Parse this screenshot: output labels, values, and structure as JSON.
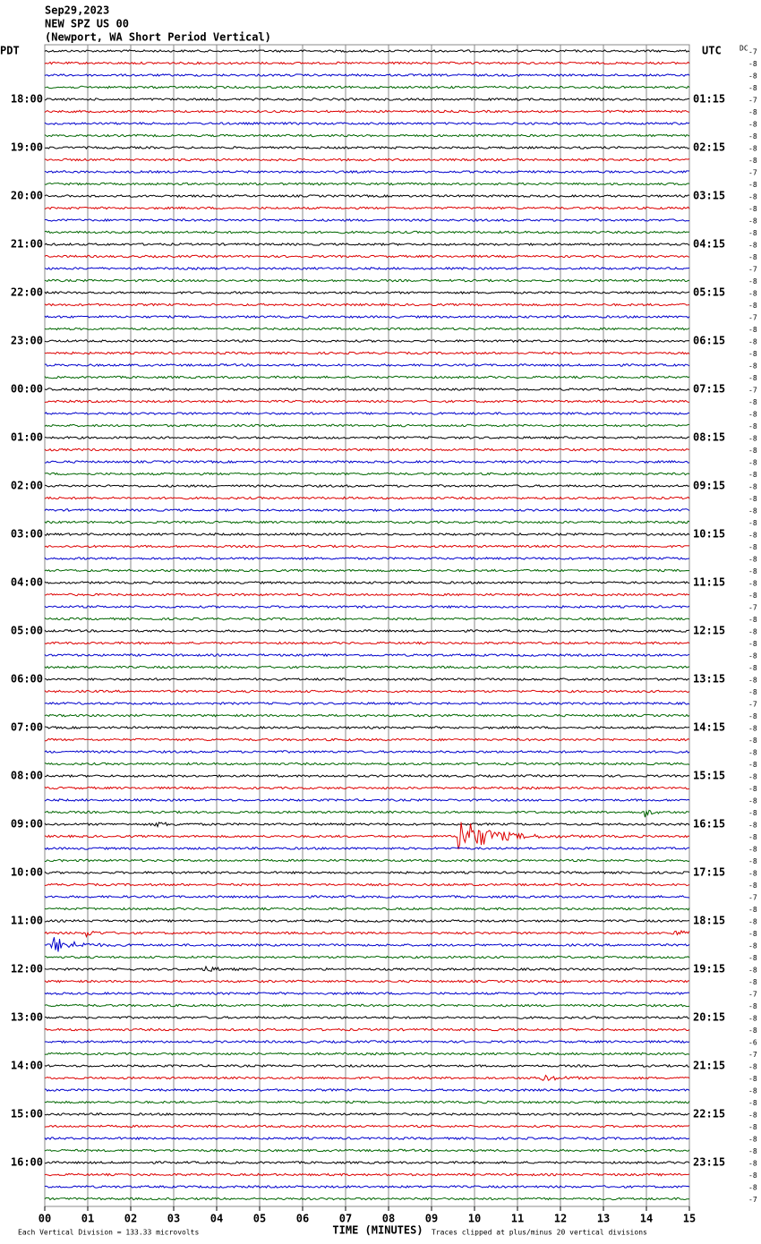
{
  "header": {
    "lines": [
      "Sep29,2023",
      "NEW SPZ US 00",
      "(Newport, WA Short Period Vertical)"
    ]
  },
  "left_zone": "PDT",
  "right_zone": "UTC",
  "dc_label": "DC",
  "left_times": [
    "18:00",
    "19:00",
    "20:00",
    "21:00",
    "22:00",
    "23:00",
    "00:00",
    "01:00",
    "02:00",
    "03:00",
    "04:00",
    "05:00",
    "06:00",
    "07:00",
    "08:00",
    "09:00",
    "10:00",
    "11:00",
    "12:00",
    "13:00",
    "14:00",
    "15:00",
    "16:00"
  ],
  "right_times": [
    "01:15",
    "02:15",
    "03:15",
    "04:15",
    "05:15",
    "06:15",
    "07:15",
    "08:15",
    "09:15",
    "10:15",
    "11:15",
    "12:15",
    "13:15",
    "14:15",
    "15:15",
    "16:15",
    "17:15",
    "18:15",
    "19:15",
    "20:15",
    "21:15",
    "22:15",
    "23:15"
  ],
  "dc_offsets": [
    -7,
    -8,
    -8,
    -8,
    -7,
    -8,
    -8,
    -8,
    -8,
    -8,
    -7,
    -8,
    -8,
    -8,
    -8,
    -8,
    -8,
    -8,
    -7,
    -8,
    -8,
    -8,
    -7,
    -8,
    -8,
    -8,
    -8,
    -8,
    -7,
    -8,
    -8,
    -8,
    -8,
    -8,
    -8,
    -8,
    -8,
    -8,
    -8,
    -8,
    -8,
    -8,
    -8,
    -8,
    -8,
    -8,
    -7,
    -8,
    -8,
    -8,
    -8,
    -8,
    -8,
    -8,
    -7,
    -8,
    -8,
    -8,
    -8,
    -8,
    -8,
    -8,
    -8,
    -8,
    -8,
    -8,
    -8,
    -8,
    -8,
    -8,
    -7,
    -8,
    -8,
    -8,
    -8,
    -8,
    -8,
    -8,
    -7,
    -8,
    -8,
    -8,
    -6,
    -7,
    -8,
    -8,
    -8,
    -8,
    -8,
    -8,
    -8,
    -8,
    -8,
    -8,
    -8,
    -7
  ],
  "x_ticks": [
    "00",
    "01",
    "02",
    "03",
    "04",
    "05",
    "06",
    "07",
    "08",
    "09",
    "10",
    "11",
    "12",
    "13",
    "14",
    "15"
  ],
  "x_label": "TIME (MINUTES)",
  "footer": {
    "scale": "Each Vertical Division =  133.33 microvolts",
    "clip": "Traces clipped at plus/minus 20 vertical divisions"
  }
}
